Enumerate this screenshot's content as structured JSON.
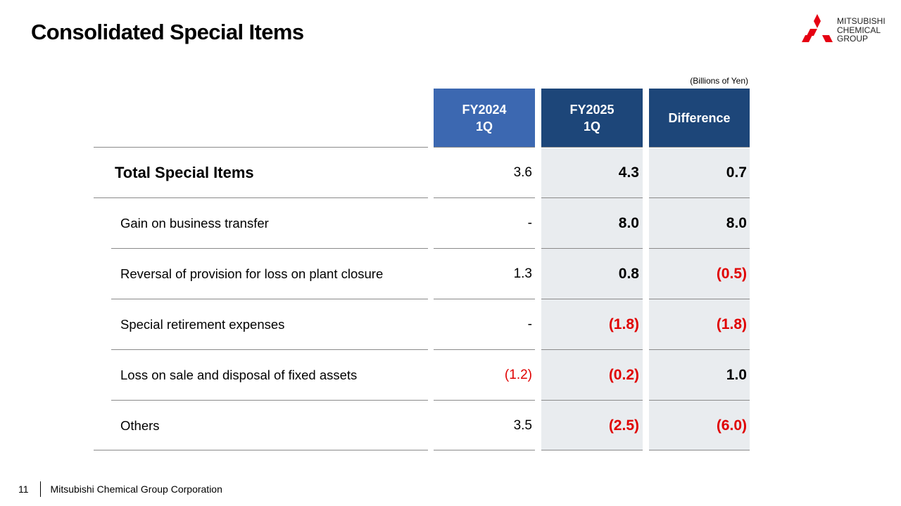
{
  "slide": {
    "title": "Consolidated Special Items",
    "unit": "(Billions of Yen)",
    "logo": {
      "lines": [
        "MITSUBISHI",
        "CHEMICAL",
        "GROUP"
      ],
      "color": "#e60012"
    },
    "columns": [
      {
        "line1": "FY2024",
        "line2": "1Q",
        "color": "#3c68b1"
      },
      {
        "line1": "FY2025",
        "line2": "1Q",
        "color": "#1d4679"
      },
      {
        "label": "Difference",
        "color": "#1d4679"
      }
    ],
    "rows": [
      {
        "label": "Total Special Items",
        "fy2024": "3.6",
        "fy2025": "4.3",
        "diff": "0.7"
      },
      {
        "label": "Gain on business transfer",
        "fy2024": "-",
        "fy2025": "8.0",
        "diff": "8.0"
      },
      {
        "label": "Reversal of provision for loss on plant closure",
        "fy2024": "1.3",
        "fy2025": "0.8",
        "diff": "(0.5)"
      },
      {
        "label": "Special retirement expenses",
        "fy2024": "-",
        "fy2025": "(1.8)",
        "diff": "(1.8)"
      },
      {
        "label": "Loss on sale and disposal of fixed assets",
        "fy2024": "(1.2)",
        "fy2025": "(0.2)",
        "diff": "1.0"
      },
      {
        "label": "Others",
        "fy2024": "3.5",
        "fy2025": "(2.5)",
        "diff": "(6.0)"
      }
    ],
    "negative_color": "#e00000"
  },
  "footer": {
    "page": "11",
    "company": "Mitsubishi Chemical Group Corporation"
  }
}
